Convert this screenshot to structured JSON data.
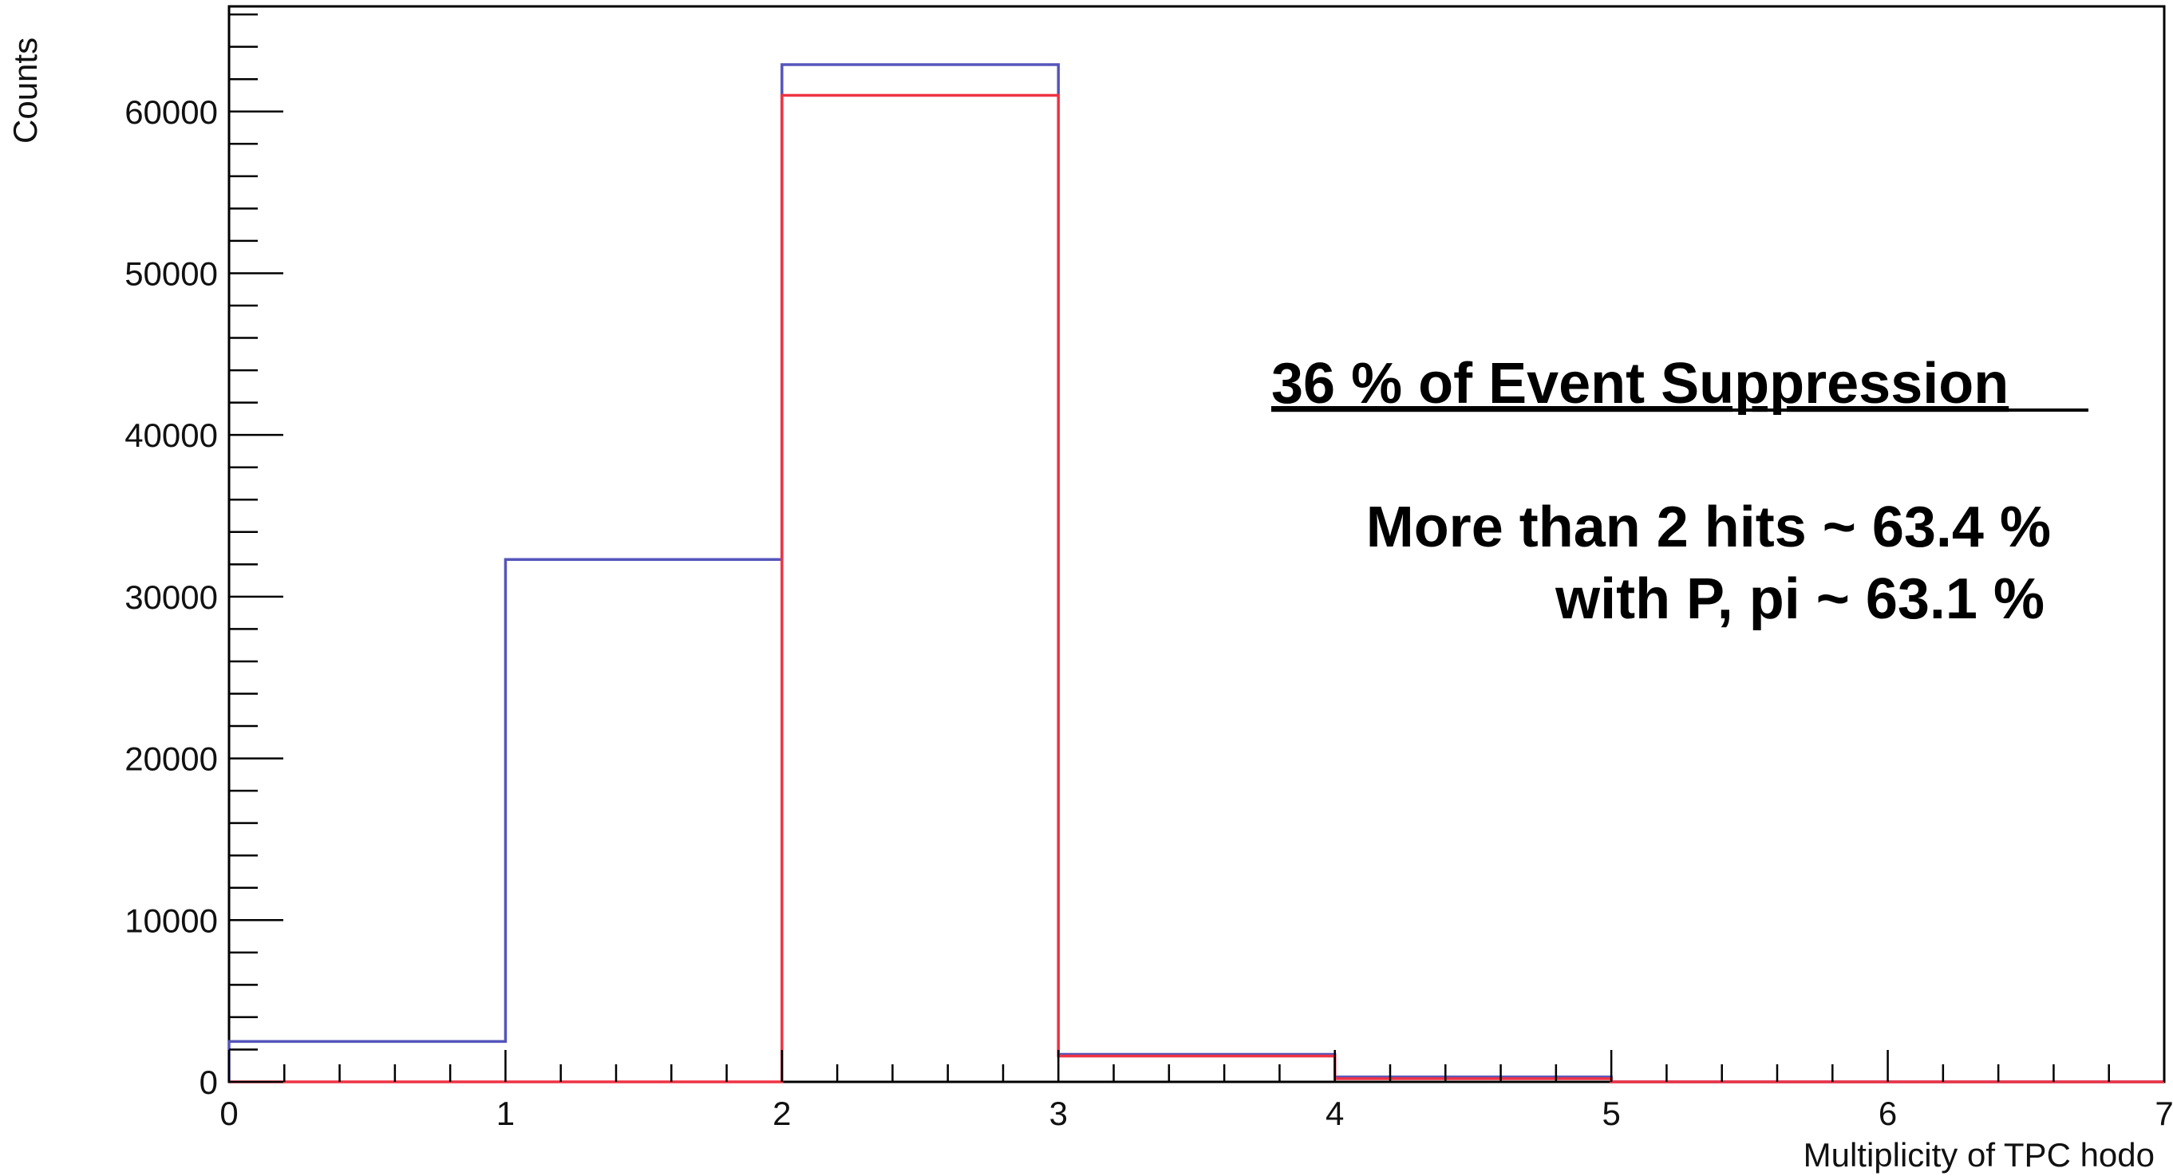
{
  "chart_data": {
    "type": "histogram",
    "xlabel": "Multiplicity of TPC hodo",
    "ylabel": "Counts",
    "xlim": [
      0,
      7
    ],
    "ylim": [
      0,
      66500
    ],
    "x_ticks": [
      "0",
      "1",
      "2",
      "3",
      "4",
      "5",
      "6",
      "7"
    ],
    "y_ticks": [
      "0",
      "10000",
      "20000",
      "30000",
      "40000",
      "50000",
      "60000"
    ],
    "bin_edges": [
      0,
      1,
      2,
      3,
      4,
      5,
      6,
      7
    ],
    "series": [
      {
        "color": "#5555bb",
        "values": [
          2500,
          32300,
          62900,
          1700,
          300,
          0,
          0
        ]
      },
      {
        "color": "#ee3344",
        "values": [
          0,
          0,
          61000,
          1600,
          200,
          0,
          0
        ]
      }
    ],
    "annotations": {
      "title": "36 % of Event Suppression",
      "line1": "More than 2 hits ~ 63.4 %",
      "line2": "with P, pi ~ 63.1 %"
    }
  }
}
